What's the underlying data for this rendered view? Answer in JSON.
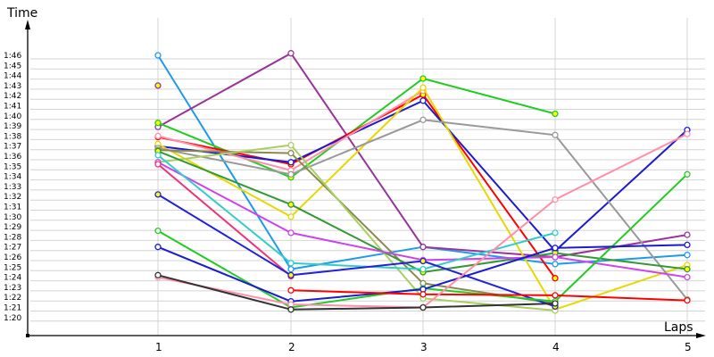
{
  "chart_data": {
    "type": "line",
    "title": "",
    "xlabel": "Laps",
    "ylabel": "Time",
    "x": [
      1,
      2,
      3,
      4,
      5
    ],
    "xtick_labels": [
      "1",
      "2",
      "3",
      "4",
      "5"
    ],
    "ytick_labels": [
      "1:20",
      "1:21",
      "1:22",
      "1:23",
      "1:24",
      "1:25",
      "1:26",
      "1:27",
      "1:28",
      "1:29",
      "1:30",
      "1:31",
      "1:32",
      "1:33",
      "1:34",
      "1:35",
      "1:36",
      "1:37",
      "1:38",
      "1:39",
      "1:40",
      "1:41",
      "1:42",
      "1:43",
      "1:44",
      "1:45",
      "1:46"
    ],
    "ylim_seconds": [
      80,
      106
    ],
    "grid": true,
    "legend": false,
    "units": "seconds (80 = 1:20)",
    "series": [
      {
        "name": "sky-blue",
        "color": "#1e9be8",
        "marker_fill": "#ffffff",
        "values": [
          106.0,
          84.8,
          87.0,
          85.3,
          86.2
        ]
      },
      {
        "name": "purple",
        "color": "#993399",
        "marker_fill": "#ffff00",
        "values": [
          103.0,
          null,
          null,
          null,
          null
        ]
      },
      {
        "name": "purple-top",
        "color": "#993399",
        "marker_fill": "#ffffff",
        "values": [
          98.9,
          106.2,
          87.0,
          86.0,
          88.2
        ]
      },
      {
        "name": "green",
        "color": "#22cc22",
        "marker_fill": "#ffff00",
        "values": [
          99.3,
          93.9,
          103.7,
          100.2,
          null
        ]
      },
      {
        "name": "red",
        "color": "#ff0000",
        "marker_fill": "#ffff00",
        "values": [
          97.9,
          95.2,
          102.1,
          83.9,
          null
        ]
      },
      {
        "name": "navy",
        "color": "#1c1ccc",
        "marker_fill": "#ffffff",
        "values": [
          97.0,
          95.4,
          101.5,
          86.6,
          98.6
        ]
      },
      {
        "name": "pink",
        "color": "#ff8fa8",
        "marker_fill": "#ffffff",
        "values": [
          98.0,
          94.6,
          102.5,
          null,
          null
        ]
      },
      {
        "name": "yellow",
        "color": "#e6d800",
        "marker_fill": "#ffffff",
        "values": [
          97.2,
          90.0,
          102.8,
          80.8,
          85.2
        ]
      },
      {
        "name": "gray",
        "color": "#999999",
        "marker_fill": "#ffffff",
        "values": [
          96.8,
          94.2,
          99.6,
          98.1,
          81.8
        ]
      },
      {
        "name": "olive",
        "color": "#8a8a50",
        "marker_fill": "#ffffff",
        "values": [
          96.6,
          96.3,
          83.4,
          81.4,
          null
        ]
      },
      {
        "name": "yellow-green",
        "color": "#a8d060",
        "marker_fill": "#ffffff",
        "values": [
          95.4,
          97.1,
          81.9,
          80.7,
          null
        ]
      },
      {
        "name": "dark-green",
        "color": "#339933",
        "marker_fill": "#ffff00",
        "values": [
          96.5,
          91.2,
          84.5,
          86.4,
          84.8
        ]
      },
      {
        "name": "violet",
        "color": "#cc44ee",
        "marker_fill": "#ffffff",
        "values": [
          95.4,
          88.4,
          85.7,
          86.0,
          84.0
        ]
      },
      {
        "name": "teal",
        "color": "#33cccc",
        "marker_fill": "#ffffff",
        "values": [
          96.1,
          85.4,
          84.8,
          88.4,
          null
        ]
      },
      {
        "name": "magenta-red",
        "color": "#ee3377",
        "marker_fill": "#ffffff",
        "values": [
          95.2,
          84.1,
          null,
          null,
          null
        ]
      },
      {
        "name": "blue",
        "color": "#2222dd",
        "marker_fill": "#ffff00",
        "values": [
          92.2,
          84.2,
          85.6,
          81.1,
          null
        ]
      },
      {
        "name": "green-low",
        "color": "#22cc22",
        "marker_fill": "#ffffff",
        "values": [
          88.6,
          81.0,
          82.9,
          81.6,
          94.2
        ]
      },
      {
        "name": "blue-low",
        "color": "#1c1ccc",
        "marker_fill": "#ffffff",
        "values": [
          87.0,
          81.6,
          82.8,
          86.9,
          87.2
        ]
      },
      {
        "name": "red-low",
        "color": "#ff0000",
        "marker_fill": "#ffffff",
        "values": [
          null,
          82.7,
          82.3,
          82.2,
          81.7
        ]
      },
      {
        "name": "salmon",
        "color": "#ff8fa8",
        "marker_fill": "#ffffff",
        "values": [
          84.0,
          81.3,
          81.0,
          91.7,
          98.2
        ]
      },
      {
        "name": "charcoal",
        "color": "#333333",
        "marker_fill": "#ffffff",
        "values": [
          84.2,
          80.8,
          81.0,
          81.4,
          null
        ]
      }
    ]
  }
}
